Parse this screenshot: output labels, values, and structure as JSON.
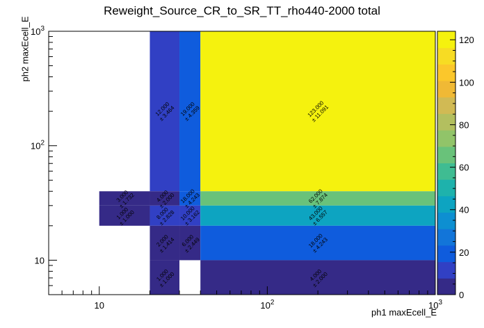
{
  "chart_data": {
    "type": "heatmap",
    "title": "Reweight_Source_CR_to_SR_TT_rho440-2000 total",
    "xlabel": "ph1 maxEcell_E",
    "ylabel": "ph2 maxEcell_E",
    "x_scale": "log",
    "y_scale": "log",
    "xlim": [
      5,
      1000
    ],
    "ylim": [
      5,
      1000
    ],
    "x_ticks": [
      {
        "value": 10,
        "label": "10"
      },
      {
        "value": 100,
        "label": "10²"
      },
      {
        "value": 1000,
        "label": "10³"
      }
    ],
    "y_ticks": [
      {
        "value": 10,
        "label": "10"
      },
      {
        "value": 100,
        "label": "10²"
      },
      {
        "value": 1000,
        "label": "10³"
      }
    ],
    "colorbar": {
      "min": 0,
      "max": 124,
      "ticks": [
        0,
        20,
        40,
        60,
        80,
        100,
        120
      ],
      "palette": [
        "#352a87",
        "#3140c4",
        "#0f5cdd",
        "#1275d9",
        "#0d8fd1",
        "#0da4c1",
        "#1eb2ac",
        "#3fbc92",
        "#69c27a",
        "#91c469",
        "#b3bf5f",
        "#d1ba54",
        "#f0b935",
        "#fbc72b",
        "#f7dc23",
        "#f5f20e"
      ]
    },
    "cells": [
      {
        "x0": 20,
        "x1": 30,
        "y0": 40,
        "y1": 1000,
        "value": 12,
        "error": 3.464,
        "label_value": "12.000",
        "label_error": "± 3.464"
      },
      {
        "x0": 30,
        "x1": 40,
        "y0": 40,
        "y1": 1000,
        "value": 19,
        "error": 4.359,
        "label_value": "19.000",
        "label_error": "± 4.359"
      },
      {
        "x0": 40,
        "x1": 1000,
        "y0": 40,
        "y1": 1000,
        "value": 123,
        "error": 11.091,
        "label_value": "123.000",
        "label_error": "± 11.091"
      },
      {
        "x0": 10,
        "x1": 20,
        "y0": 30,
        "y1": 40,
        "value": 3,
        "error": 1.732,
        "label_value": "3.000",
        "label_error": "± 1.732"
      },
      {
        "x0": 20,
        "x1": 30,
        "y0": 30,
        "y1": 40,
        "value": 4,
        "error": 2.0,
        "label_value": "4.000",
        "label_error": "± 2.000"
      },
      {
        "x0": 30,
        "x1": 40,
        "y0": 30,
        "y1": 40,
        "value": 18,
        "error": 4.243,
        "label_value": "18.000",
        "label_error": "± 4.243"
      },
      {
        "x0": 40,
        "x1": 1000,
        "y0": 30,
        "y1": 40,
        "value": 62,
        "error": 7.874,
        "label_value": "62.000",
        "label_error": "± 7.874"
      },
      {
        "x0": 10,
        "x1": 20,
        "y0": 20,
        "y1": 30,
        "value": 1,
        "error": 1.0,
        "label_value": "1.000",
        "label_error": "± 1.000"
      },
      {
        "x0": 20,
        "x1": 30,
        "y0": 20,
        "y1": 30,
        "value": 8,
        "error": 2.828,
        "label_value": "8.000",
        "label_error": "± 2.828"
      },
      {
        "x0": 30,
        "x1": 40,
        "y0": 20,
        "y1": 30,
        "value": 10,
        "error": 3.162,
        "label_value": "10.000",
        "label_error": "± 3.162"
      },
      {
        "x0": 40,
        "x1": 1000,
        "y0": 20,
        "y1": 30,
        "value": 43,
        "error": 6.557,
        "label_value": "43.000",
        "label_error": "± 6.557"
      },
      {
        "x0": 20,
        "x1": 30,
        "y0": 10,
        "y1": 20,
        "value": 2,
        "error": 1.414,
        "label_value": "2.000",
        "label_error": "± 1.414"
      },
      {
        "x0": 30,
        "x1": 40,
        "y0": 10,
        "y1": 20,
        "value": 6,
        "error": 2.449,
        "label_value": "6.000",
        "label_error": "± 2.449"
      },
      {
        "x0": 40,
        "x1": 1000,
        "y0": 10,
        "y1": 20,
        "value": 18,
        "error": 4.243,
        "label_value": "18.000",
        "label_error": "± 4.243"
      },
      {
        "x0": 20,
        "x1": 30,
        "y0": 5,
        "y1": 10,
        "value": 1,
        "error": 1.0,
        "label_value": "1.000",
        "label_error": "± 1.000"
      },
      {
        "x0": 40,
        "x1": 1000,
        "y0": 5,
        "y1": 10,
        "value": 4,
        "error": 2.0,
        "label_value": "4.000",
        "label_error": "± 2.000"
      }
    ],
    "grid": false,
    "legend": "none"
  }
}
